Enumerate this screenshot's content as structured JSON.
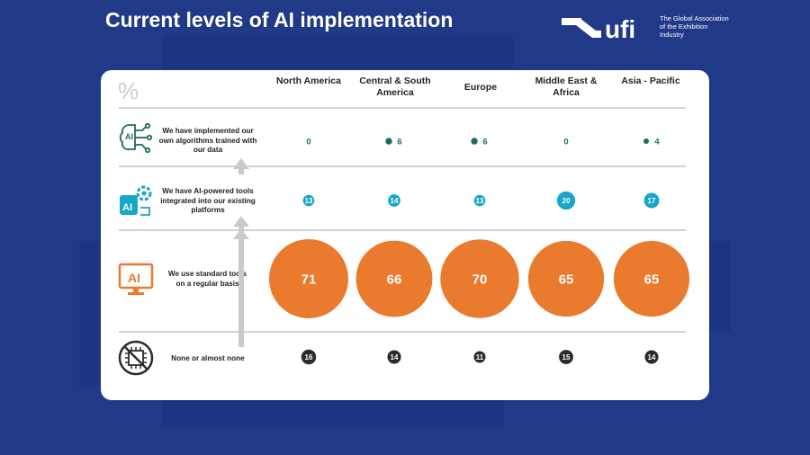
{
  "header": {
    "title": "Current levels of AI implementation",
    "logo_word": "ufi",
    "logo_tagline": "The Global Association of the Exhibition Industry"
  },
  "colors": {
    "background": "#213a87",
    "teal": "#1aa6c7",
    "dark_green": "#1f6b63",
    "orange": "#ea7a2d",
    "dark": "#2b2b2b",
    "arrow": "#c8cacc"
  },
  "icons": {
    "row0": "ai-brain-icon",
    "row1": "ai-gear-icon",
    "row2": "ai-monitor-icon",
    "row3": "no-ai-chip-icon"
  },
  "chart_data": {
    "type": "bubble-table",
    "unit_label": "%",
    "columns": [
      "North America",
      "Central & South America",
      "Europe",
      "Middle East & Africa",
      "Asia - Pacific"
    ],
    "rows": [
      {
        "label": "We have implemented our own algorithms trained with our data",
        "values": [
          0,
          6,
          6,
          0,
          4
        ],
        "color": "#1f6b63"
      },
      {
        "label": "We have AI-powered tools integrated into our existing platforms",
        "values": [
          13,
          14,
          13,
          20,
          17
        ],
        "color": "#1aa6c7"
      },
      {
        "label": "We use standard tools on a regular basis",
        "values": [
          71,
          66,
          70,
          65,
          65
        ],
        "color": "#ea7a2d"
      },
      {
        "label": "None or almost none",
        "values": [
          16,
          14,
          11,
          15,
          14
        ],
        "color": "#2b2b2b"
      }
    ]
  }
}
